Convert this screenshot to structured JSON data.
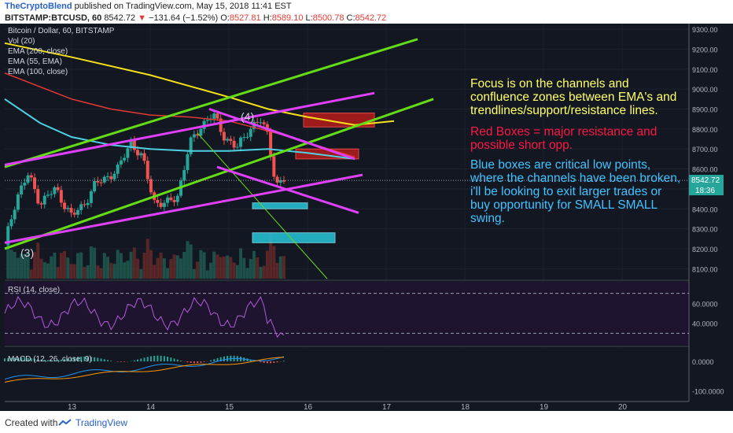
{
  "header": {
    "author": "TheCryptoBlend",
    "published": "published on TradingView.com, May 15, 2018 11:41 EST",
    "symbol": "BITSTAMP:BTCUSD, 60",
    "last": "8542.72",
    "change": "−131.64 (−1.52%)",
    "o_label": "O:",
    "o": "8527.81",
    "h_label": "H:",
    "h": "8589.10",
    "l_label": "L:",
    "l": "8500.78",
    "c_label": "C:",
    "c": "8542.72"
  },
  "legend": {
    "title": "Bitcoin / Dollar, 60, BITSTAMP",
    "vol": "Vol (20)",
    "ema200": "EMA (200, close)",
    "ema55": "EMA (55, EMA)",
    "ema100": "EMA (100, close)"
  },
  "annotations": {
    "wave4": "(4)",
    "wave3": "(3)",
    "focus_text": "Focus is on the channels and confluence zones between EMA's and trendlines/support/resistance lines.",
    "red_text": "Red Boxes = major resistance and possible short opp.",
    "blue_text": "Blue boxes are critical low points, where the channels have been broken, i'll be looking to exit larger trades or buy opportunity for SMALL SMALL swing."
  },
  "price_badge": {
    "value": "8542.72",
    "time": "18:36"
  },
  "rsi": {
    "label": "RSI (14, close)"
  },
  "macd": {
    "label": "MACD (12, 26, close, 9)"
  },
  "footer": {
    "created_with": "Created with",
    "brand": "TradingView"
  },
  "colors": {
    "up": "#26a69a",
    "down": "#ef5350",
    "ema200": "#f5e11b",
    "ema100": "#4dd0e1",
    "ema55": "#e53935",
    "green_channel": "#64dd17",
    "pink_channel": "#e040fb",
    "bg": "#131722",
    "text": "#d1d4dc",
    "focus_text": "#ffff66",
    "red_text": "#ff1744",
    "blue_text": "#40c4ff"
  },
  "chart_data": {
    "type": "candlestick",
    "main": {
      "ylim": [
        8050,
        9320
      ],
      "yticks": [
        8100,
        8200,
        8300,
        8400,
        8500,
        8600,
        8700,
        8800,
        8900,
        9000,
        9100,
        9200,
        9300
      ],
      "ytick_labels": [
        "8100.00",
        "8200.00",
        "8300.00",
        "8400.00",
        "8500.00",
        "8600.00",
        "8700.00",
        "8800.00",
        "8900.00",
        "9000.00",
        "9100.00",
        "9200.00",
        "9300.00"
      ],
      "xlim": [
        12.15,
        20.85
      ],
      "xticks": [
        13,
        14,
        15,
        16,
        17,
        18,
        19,
        20
      ],
      "xtick_labels": [
        "13",
        "14",
        "15",
        "16",
        "17",
        "18",
        "19",
        "20"
      ],
      "current_price": 8542.72,
      "close_path": [
        {
          "x": 12.15,
          "y": 8220
        },
        {
          "x": 12.3,
          "y": 8460
        },
        {
          "x": 12.45,
          "y": 8570
        },
        {
          "x": 12.6,
          "y": 8430
        },
        {
          "x": 12.8,
          "y": 8500
        },
        {
          "x": 13.0,
          "y": 8360
        },
        {
          "x": 13.15,
          "y": 8420
        },
        {
          "x": 13.3,
          "y": 8520
        },
        {
          "x": 13.45,
          "y": 8560
        },
        {
          "x": 13.6,
          "y": 8600
        },
        {
          "x": 13.75,
          "y": 8740
        },
        {
          "x": 13.9,
          "y": 8650
        },
        {
          "x": 14.05,
          "y": 8440
        },
        {
          "x": 14.2,
          "y": 8420
        },
        {
          "x": 14.35,
          "y": 8470
        },
        {
          "x": 14.5,
          "y": 8720
        },
        {
          "x": 14.65,
          "y": 8820
        },
        {
          "x": 14.8,
          "y": 8870
        },
        {
          "x": 14.95,
          "y": 8760
        },
        {
          "x": 15.1,
          "y": 8700
        },
        {
          "x": 15.25,
          "y": 8800
        },
        {
          "x": 15.4,
          "y": 8840
        },
        {
          "x": 15.5,
          "y": 8770
        },
        {
          "x": 15.6,
          "y": 8510
        },
        {
          "x": 15.7,
          "y": 8542.72
        }
      ],
      "ema200": [
        {
          "x": 12.15,
          "y": 9230
        },
        {
          "x": 13.0,
          "y": 9160
        },
        {
          "x": 14.0,
          "y": 9070
        },
        {
          "x": 15.0,
          "y": 8960
        },
        {
          "x": 15.5,
          "y": 8900
        },
        {
          "x": 16.0,
          "y": 8860
        },
        {
          "x": 16.6,
          "y": 8820
        },
        {
          "x": 17.1,
          "y": 8840
        }
      ],
      "ema100": [
        {
          "x": 12.15,
          "y": 8950
        },
        {
          "x": 12.6,
          "y": 8830
        },
        {
          "x": 13.0,
          "y": 8760
        },
        {
          "x": 13.5,
          "y": 8720
        },
        {
          "x": 14.0,
          "y": 8700
        },
        {
          "x": 14.5,
          "y": 8690
        },
        {
          "x": 15.0,
          "y": 8690
        },
        {
          "x": 15.5,
          "y": 8700
        },
        {
          "x": 16.0,
          "y": 8680
        },
        {
          "x": 16.6,
          "y": 8650
        }
      ],
      "ema55": [
        {
          "x": 12.15,
          "y": 9080
        },
        {
          "x": 13.0,
          "y": 8950
        },
        {
          "x": 13.5,
          "y": 8900
        },
        {
          "x": 14.0,
          "y": 8870
        },
        {
          "x": 14.5,
          "y": 8860
        },
        {
          "x": 15.0,
          "y": 8840
        },
        {
          "x": 15.6,
          "y": 8780
        },
        {
          "x": 16.6,
          "y": 8660
        }
      ],
      "green_lines": [
        {
          "from": {
            "x": 12.15,
            "y": 8610
          },
          "to": {
            "x": 17.4,
            "y": 9250
          }
        },
        {
          "from": {
            "x": 12.15,
            "y": 8200
          },
          "to": {
            "x": 17.6,
            "y": 8950
          }
        },
        {
          "from": {
            "x": 14.6,
            "y": 8780
          },
          "to": {
            "x": 16.25,
            "y": 8050
          }
        }
      ],
      "pink_lines": [
        {
          "from": {
            "x": 12.15,
            "y": 8230
          },
          "to": {
            "x": 16.7,
            "y": 8570
          }
        },
        {
          "from": {
            "x": 12.15,
            "y": 8620
          },
          "to": {
            "x": 16.85,
            "y": 8980
          }
        },
        {
          "from": {
            "x": 14.75,
            "y": 8900
          },
          "to": {
            "x": 16.6,
            "y": 8650
          }
        },
        {
          "from": {
            "x": 14.85,
            "y": 8610
          },
          "to": {
            "x": 16.65,
            "y": 8380
          }
        }
      ],
      "red_boxes": [
        {
          "x0": 15.95,
          "x1": 16.85,
          "y0": 8810,
          "y1": 8880
        },
        {
          "x0": 15.85,
          "x1": 16.65,
          "y0": 8650,
          "y1": 8700
        }
      ],
      "blue_boxes": [
        {
          "x0": 15.3,
          "x1": 16.0,
          "y0": 8400,
          "y1": 8430
        },
        {
          "x0": 15.3,
          "x1": 16.35,
          "y0": 8230,
          "y1": 8280
        }
      ]
    },
    "rsi": {
      "ylim": [
        20,
        80
      ],
      "yticks": [
        40,
        60
      ],
      "ytick_labels": [
        "40.0000",
        "60.0000"
      ],
      "bands": [
        30,
        70
      ]
    },
    "macd": {
      "ylim": [
        -130,
        40
      ],
      "yticks": [
        0,
        -100
      ],
      "ytick_labels": [
        "0.0000",
        "-100.0000"
      ]
    }
  }
}
